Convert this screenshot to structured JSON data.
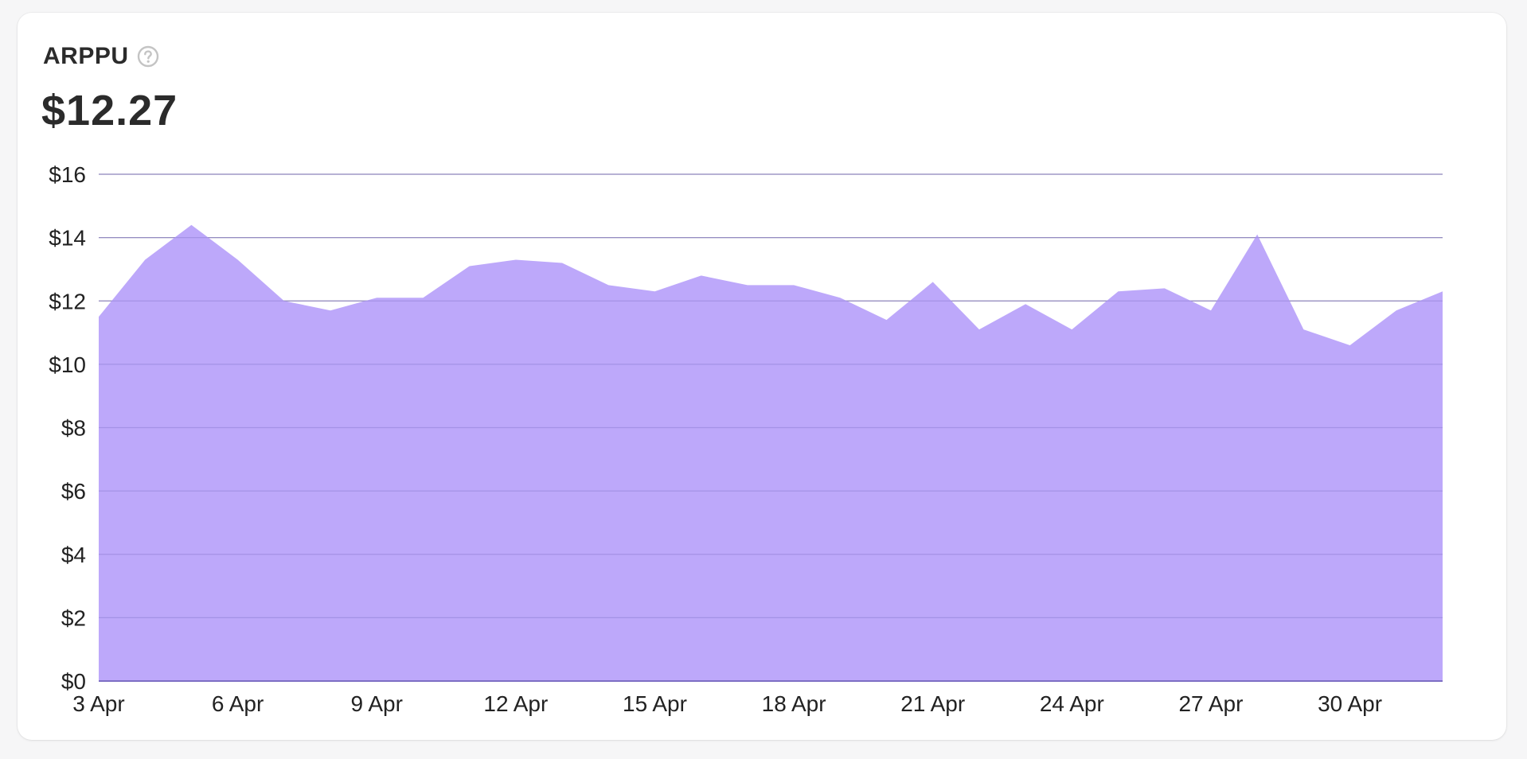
{
  "metric": {
    "label": "ARPPU",
    "value": "$12.27"
  },
  "icons": {
    "help": "question-circle-icon"
  },
  "colors": {
    "area_fill": "#bda8fa",
    "grid_line": "#9a9aa8",
    "axis_line": "#7d6fc4",
    "text": "#2b2b2b",
    "icon": "#c4c4c4"
  },
  "chart_data": {
    "type": "area",
    "title": "ARPPU",
    "xlabel": "",
    "ylabel": "",
    "ylim": [
      0,
      16
    ],
    "y_ticks": [
      "$0",
      "$2",
      "$4",
      "$6",
      "$8",
      "$10",
      "$12",
      "$14",
      "$16"
    ],
    "y_tick_values": [
      0,
      2,
      4,
      6,
      8,
      10,
      12,
      14,
      16
    ],
    "x": [
      "3 Apr",
      "4 Apr",
      "5 Apr",
      "6 Apr",
      "7 Apr",
      "8 Apr",
      "9 Apr",
      "10 Apr",
      "11 Apr",
      "12 Apr",
      "13 Apr",
      "14 Apr",
      "15 Apr",
      "16 Apr",
      "17 Apr",
      "18 Apr",
      "19 Apr",
      "20 Apr",
      "21 Apr",
      "22 Apr",
      "23 Apr",
      "24 Apr",
      "25 Apr",
      "26 Apr",
      "27 Apr",
      "28 Apr",
      "29 Apr",
      "30 Apr",
      "1 May",
      "2 May"
    ],
    "x_tick_labels": [
      "3 Apr",
      "6 Apr",
      "9 Apr",
      "12 Apr",
      "15 Apr",
      "18 Apr",
      "21 Apr",
      "24 Apr",
      "27 Apr",
      "30 Apr"
    ],
    "series": [
      {
        "values": [
          11.5,
          13.3,
          14.4,
          13.3,
          12.0,
          11.7,
          12.1,
          12.1,
          13.1,
          13.3,
          13.2,
          12.5,
          12.3,
          12.8,
          12.5,
          12.5,
          12.1,
          11.4,
          12.6,
          11.1,
          11.9,
          11.1,
          12.3,
          12.4,
          11.7,
          14.1,
          11.1,
          10.6,
          11.7,
          12.3
        ]
      }
    ],
    "grid": true,
    "legend": "none"
  }
}
